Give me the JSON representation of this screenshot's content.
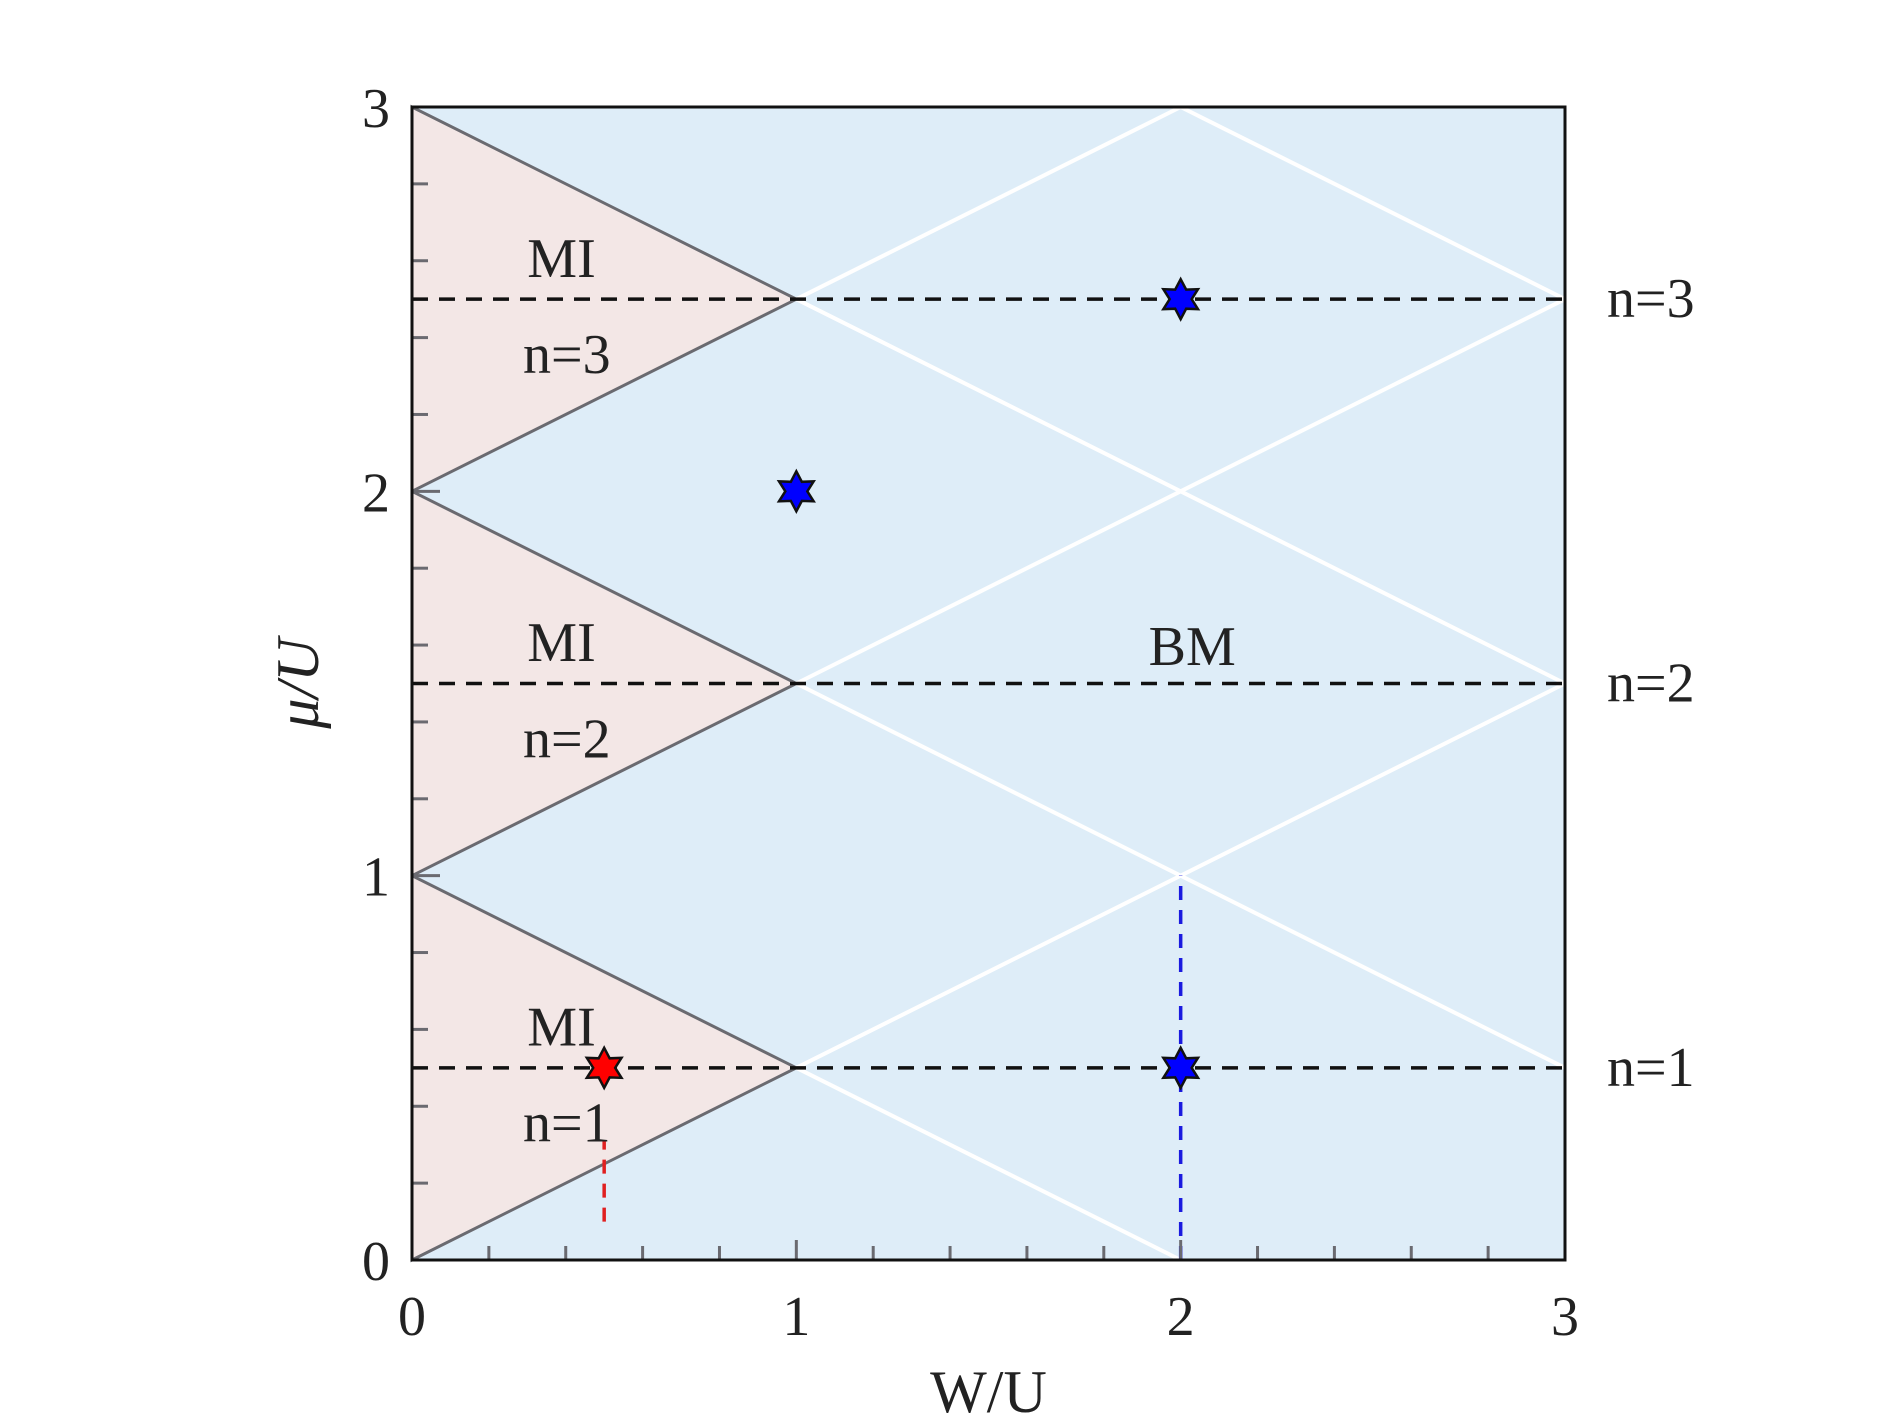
{
  "chart_data": {
    "type": "phase-diagram",
    "xlabel": "W/U",
    "ylabel": "μ/U",
    "xlim": [
      0,
      3
    ],
    "ylim": [
      0,
      3
    ],
    "x_ticks": [
      "0",
      "1",
      "2",
      "3"
    ],
    "y_ticks": [
      "0",
      "1",
      "2",
      "3"
    ],
    "x_tick_values": [
      0,
      1,
      2,
      3
    ],
    "y_tick_values": [
      0,
      1,
      2,
      3
    ],
    "minor_tick_step": 0.2,
    "grid": false,
    "regions": [
      {
        "label": "MI",
        "sublabel": "n=1",
        "vertices": [
          [
            0,
            0
          ],
          [
            1,
            0.5
          ],
          [
            0,
            1
          ]
        ],
        "label_at": [
          0.3,
          0.61
        ],
        "sublabel_at": [
          0.32,
          0.36
        ]
      },
      {
        "label": "MI",
        "sublabel": "n=2",
        "vertices": [
          [
            0,
            1
          ],
          [
            1,
            1.5
          ],
          [
            0,
            2
          ]
        ],
        "label_at": [
          0.3,
          1.61
        ],
        "sublabel_at": [
          0.32,
          1.36
        ]
      },
      {
        "label": "MI",
        "sublabel": "n=3",
        "vertices": [
          [
            0,
            2
          ],
          [
            1,
            2.5
          ],
          [
            0,
            3
          ]
        ],
        "label_at": [
          0.3,
          2.61
        ],
        "sublabel_at": [
          0.32,
          2.36
        ]
      },
      {
        "label": "BM",
        "label_at": [
          2.03,
          1.6
        ]
      }
    ],
    "region_colors": {
      "MI": "#f3e7e6",
      "BM": "#deedf8"
    },
    "boundary_color": "#6a6a70",
    "diamond_line_color": "#ffffff",
    "diamond_lines": [
      [
        [
          1,
          0.5
        ],
        [
          2,
          0
        ]
      ],
      [
        [
          1,
          0.5
        ],
        [
          3,
          1.5
        ]
      ],
      [
        [
          1,
          1.5
        ],
        [
          3,
          0.5
        ]
      ],
      [
        [
          1,
          1.5
        ],
        [
          3,
          2.5
        ]
      ],
      [
        [
          1,
          2.5
        ],
        [
          3,
          1.5
        ]
      ],
      [
        [
          1,
          2.5
        ],
        [
          2,
          3
        ]
      ],
      [
        [
          2,
          3
        ],
        [
          3,
          2.5
        ]
      ]
    ],
    "dashed_lines": [
      {
        "points": [
          [
            0,
            0.5
          ],
          [
            3,
            0.5
          ]
        ],
        "color": "#111111",
        "label": "n=1"
      },
      {
        "points": [
          [
            0,
            1.5
          ],
          [
            3,
            1.5
          ]
        ],
        "color": "#111111",
        "label": "n=2"
      },
      {
        "points": [
          [
            0,
            2.5
          ],
          [
            3,
            2.5
          ]
        ],
        "color": "#111111",
        "label": "n=3"
      },
      {
        "points": [
          [
            2,
            0
          ],
          [
            2,
            1
          ]
        ],
        "color": "#1a1adf"
      },
      {
        "points": [
          [
            0.5,
            0.1
          ],
          [
            0.5,
            0.31
          ]
        ],
        "color": "#e02020"
      }
    ],
    "markers": [
      {
        "x": 0.5,
        "y": 0.5,
        "color": "#ff0000",
        "shape": "star"
      },
      {
        "x": 2,
        "y": 0.5,
        "color": "#0000ff",
        "shape": "star"
      },
      {
        "x": 1,
        "y": 2,
        "color": "#0000ff",
        "shape": "star"
      },
      {
        "x": 2,
        "y": 2.5,
        "color": "#0000ff",
        "shape": "star"
      }
    ]
  }
}
